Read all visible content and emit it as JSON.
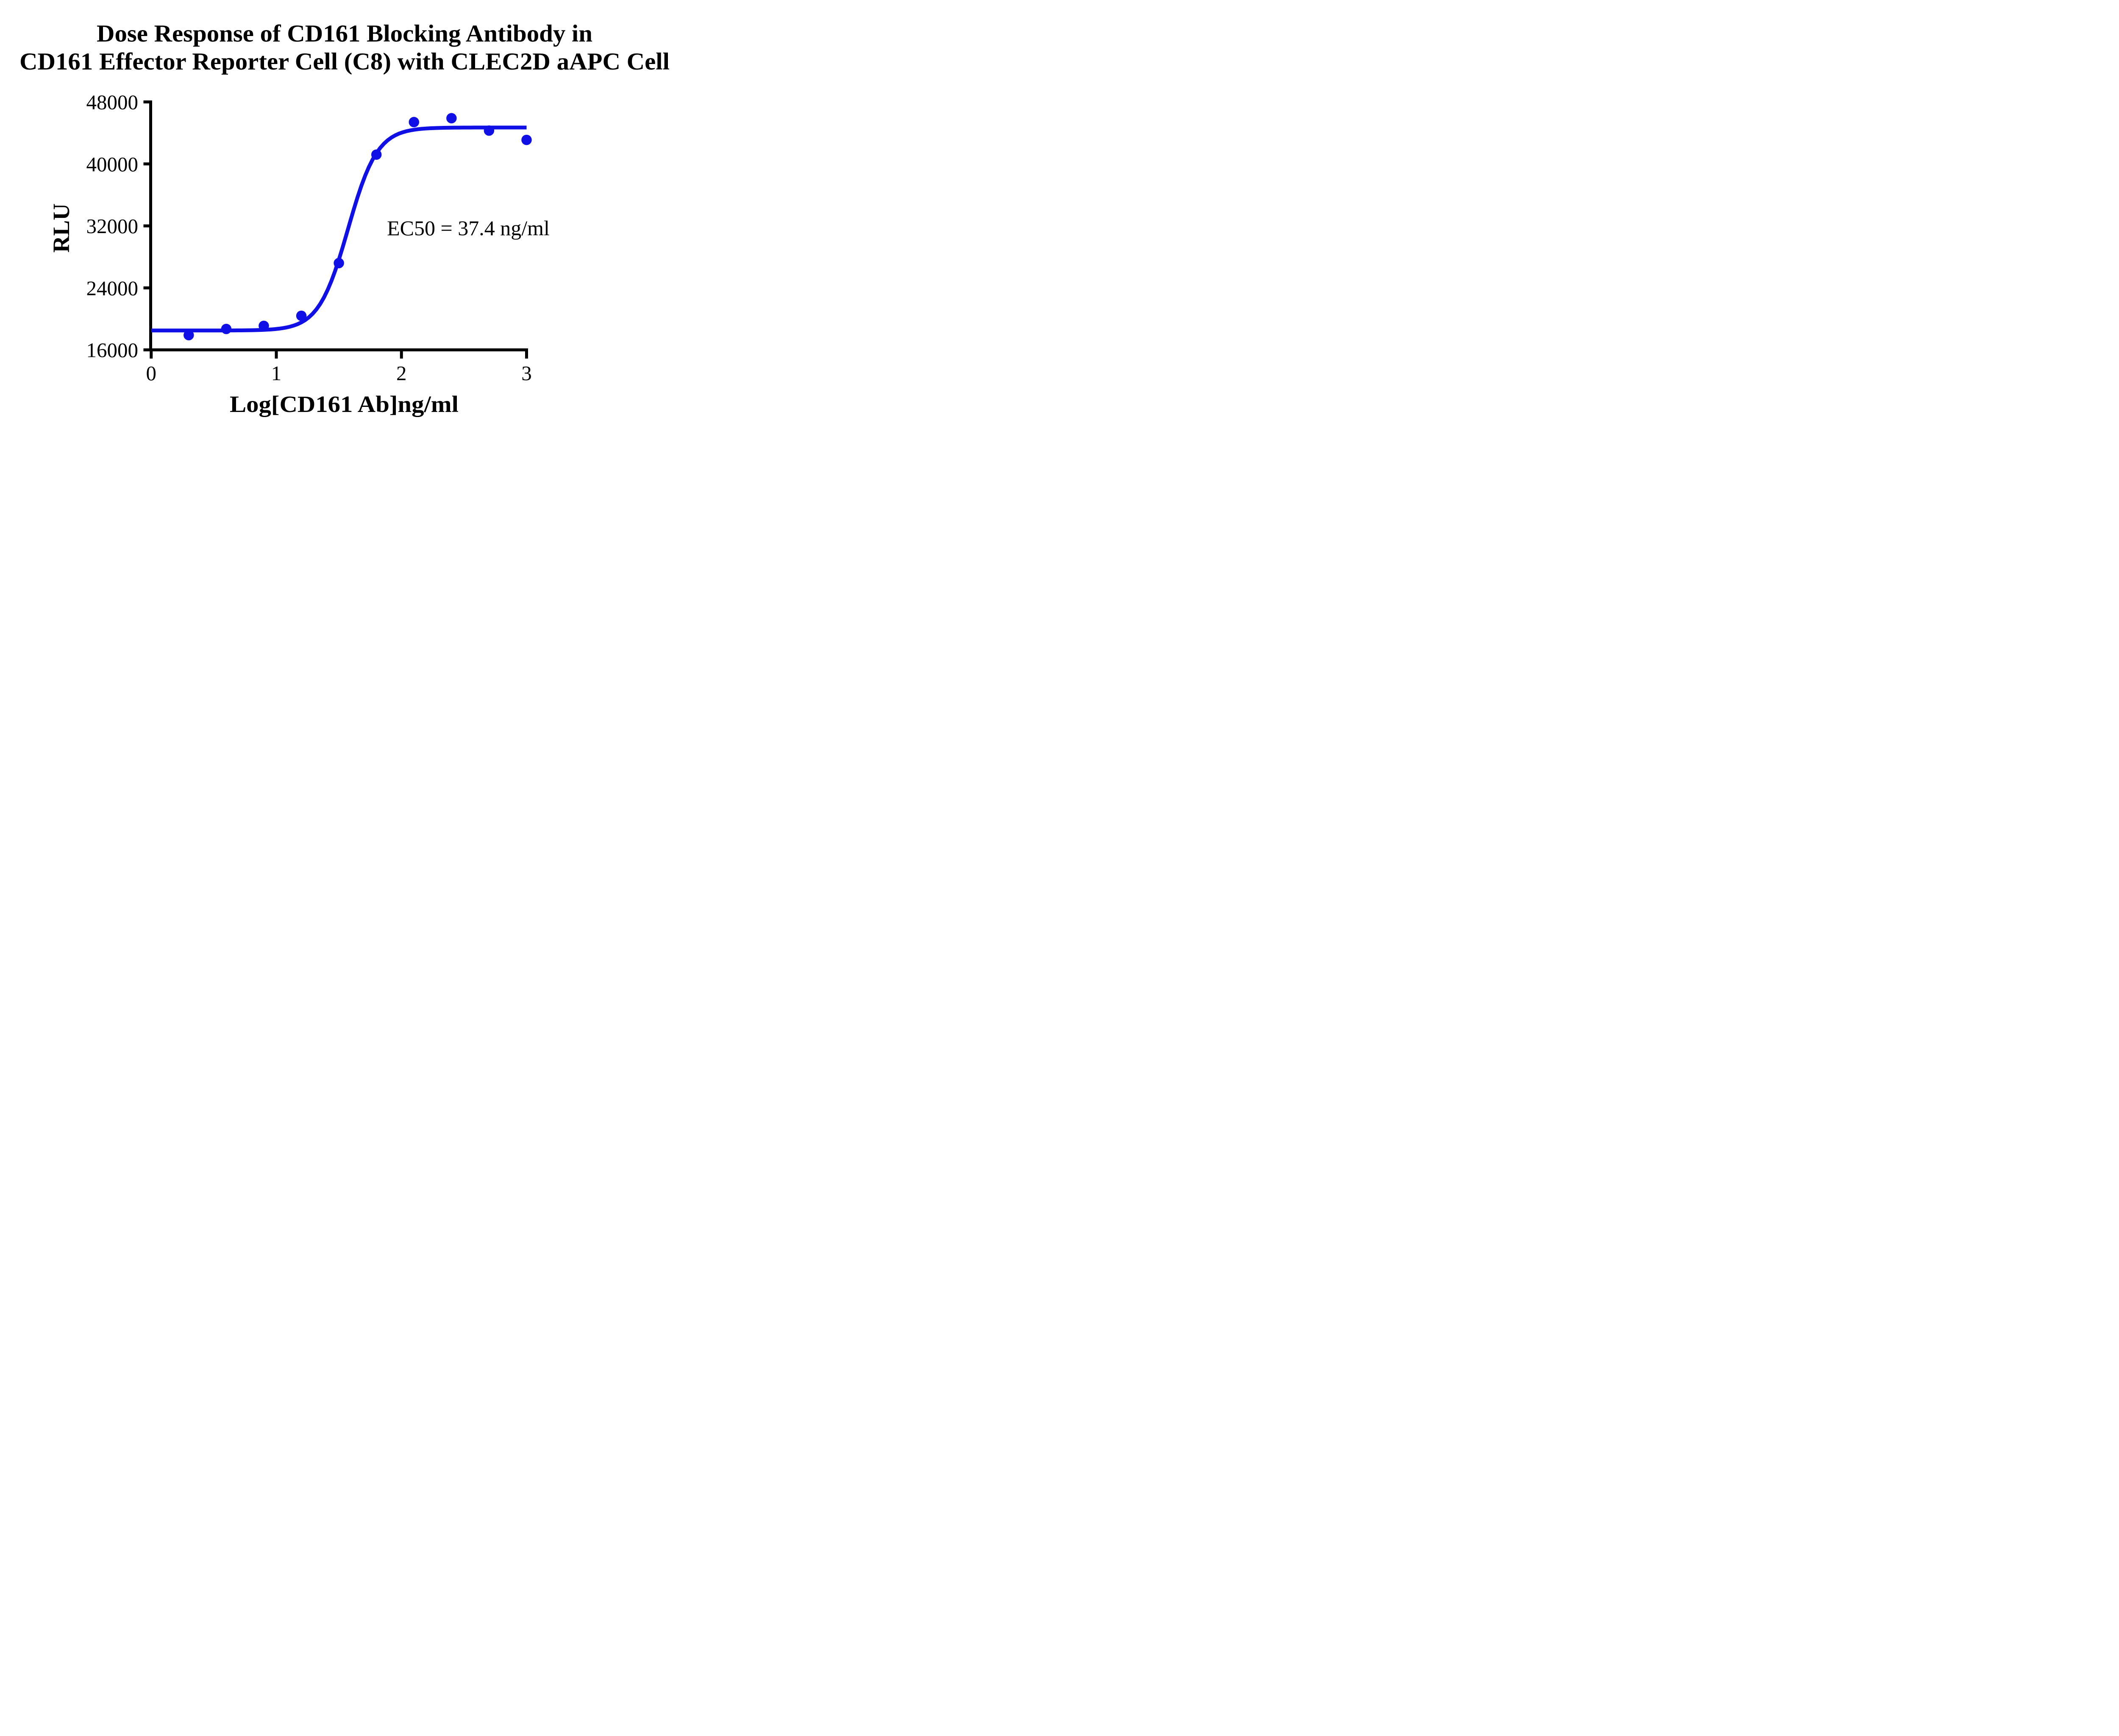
{
  "chart_data": {
    "type": "scatter",
    "title_line1": "Dose Response of CD161 Blocking Antibody in",
    "title_line2": "CD161 Effector Reporter Cell (C8) with CLEC2D aAPC Cell",
    "xlabel": "Log[CD161 Ab]ng/ml",
    "ylabel": "RLU",
    "annotation": "EC50 = 37.4 ng/ml",
    "ec50_ng_ml": 37.4,
    "xlim": [
      0,
      3
    ],
    "ylim": [
      16000,
      48000
    ],
    "x_ticks": [
      0,
      1,
      2,
      3
    ],
    "y_ticks": [
      16000,
      24000,
      32000,
      40000,
      48000
    ],
    "grid": false,
    "legend": "none",
    "points": [
      {
        "log_x": 0.3,
        "rlu": 17900
      },
      {
        "log_x": 0.6,
        "rlu": 18700
      },
      {
        "log_x": 0.9,
        "rlu": 19100
      },
      {
        "log_x": 1.2,
        "rlu": 20400
      },
      {
        "log_x": 1.5,
        "rlu": 27200
      },
      {
        "log_x": 1.8,
        "rlu": 41200
      },
      {
        "log_x": 2.1,
        "rlu": 45400
      },
      {
        "log_x": 2.4,
        "rlu": 45900
      },
      {
        "log_x": 2.7,
        "rlu": 44300
      },
      {
        "log_x": 3.0,
        "rlu": 43100
      }
    ],
    "fit_curve": {
      "model": "4PL",
      "bottom": 18500,
      "top": 44700,
      "log_ec50": 1.573,
      "hill_slope": 3.7,
      "x_start": 0,
      "x_end": 3
    },
    "colors": {
      "series": "#1010e6",
      "axis": "#000000",
      "background": "#ffffff"
    }
  }
}
